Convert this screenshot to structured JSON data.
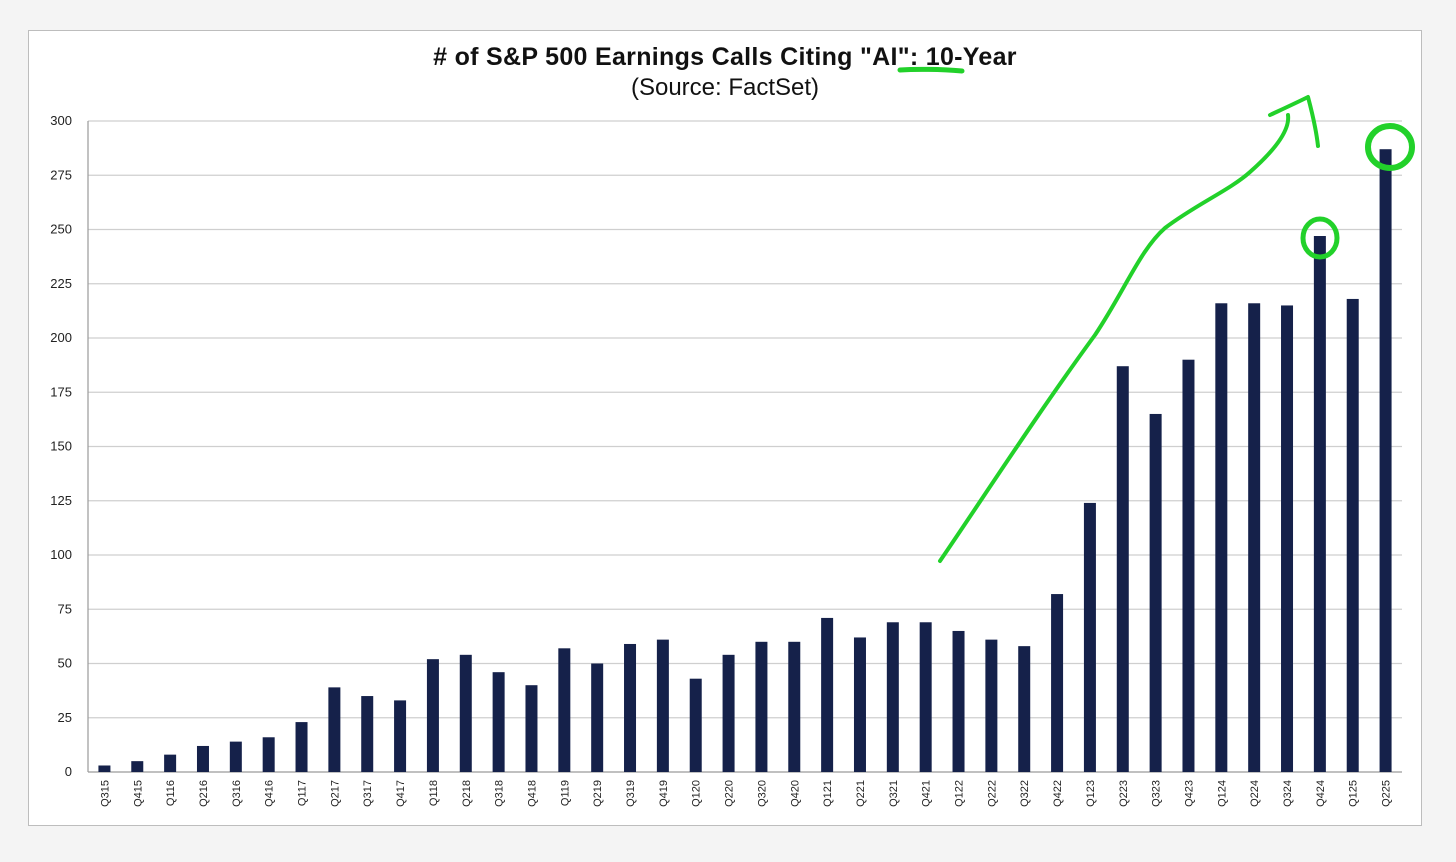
{
  "colors": {
    "bar": "#15214a",
    "annotation": "#22d12a",
    "grid": "#cfcfcf"
  },
  "chart_data": {
    "type": "bar",
    "title_pre": "# of S&P 500 Earnings Calls Citing ",
    "title_highlight": "\"AI\"",
    "title_post": ": 10-Year",
    "subtitle": "(Source: FactSet)",
    "xlabel": "",
    "ylabel": "",
    "ylim": [
      0,
      300
    ],
    "yticks": [
      0,
      25,
      50,
      75,
      100,
      125,
      150,
      175,
      200,
      225,
      250,
      275,
      300
    ],
    "grid": true,
    "legend": "none",
    "categories": [
      "Q315",
      "Q415",
      "Q116",
      "Q216",
      "Q316",
      "Q416",
      "Q117",
      "Q217",
      "Q317",
      "Q417",
      "Q118",
      "Q218",
      "Q318",
      "Q418",
      "Q119",
      "Q219",
      "Q319",
      "Q419",
      "Q120",
      "Q220",
      "Q320",
      "Q420",
      "Q121",
      "Q221",
      "Q321",
      "Q421",
      "Q122",
      "Q222",
      "Q322",
      "Q422",
      "Q123",
      "Q223",
      "Q323",
      "Q423",
      "Q124",
      "Q224",
      "Q324",
      "Q424",
      "Q125",
      "Q225"
    ],
    "values": [
      3,
      5,
      8,
      12,
      14,
      16,
      23,
      39,
      35,
      33,
      52,
      54,
      46,
      40,
      57,
      50,
      59,
      61,
      43,
      54,
      60,
      60,
      71,
      62,
      69,
      69,
      65,
      61,
      58,
      82,
      124,
      187,
      165,
      190,
      216,
      216,
      215,
      247,
      218,
      287
    ],
    "annotations": {
      "trend_arrow_from_index": 26,
      "circled_indices": [
        37,
        39
      ],
      "underlined": "\"AI\""
    }
  }
}
